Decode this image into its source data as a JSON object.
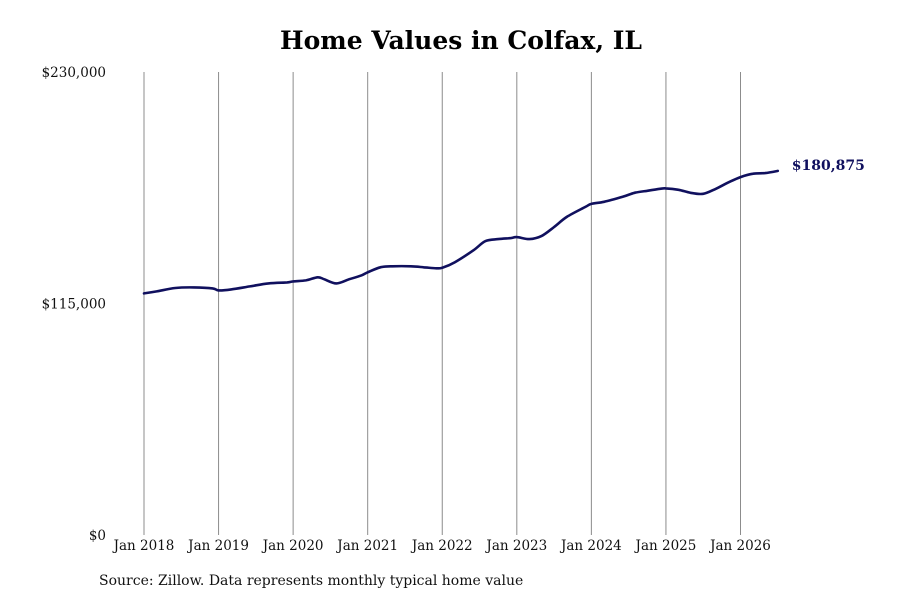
{
  "chart_data": {
    "type": "line",
    "title": "Home Values in Colfax, IL",
    "xlabel": "",
    "ylabel": "",
    "ylim": [
      0,
      230000
    ],
    "y_ticks": [
      0,
      115000,
      230000
    ],
    "y_tick_labels": [
      "$0",
      "$115,000",
      "$230,000"
    ],
    "x_ticks": [
      2018,
      2019,
      2020,
      2021,
      2022,
      2023,
      2024,
      2025,
      2026
    ],
    "x_tick_labels": [
      "Jan 2018",
      "Jan 2019",
      "Jan 2020",
      "Jan 2021",
      "Jan 2022",
      "Jan 2023",
      "Jan 2024",
      "Jan 2025",
      "Jan 2026"
    ],
    "xlim": [
      2018,
      2026.5
    ],
    "grid": "vertical",
    "line_color": "#10105e",
    "end_label": "$180,875",
    "series": [
      {
        "values": [
          [
            2018.0,
            120000
          ],
          [
            2018.17,
            121000
          ],
          [
            2018.42,
            122700
          ],
          [
            2018.67,
            123000
          ],
          [
            2018.92,
            122500
          ],
          [
            2019.0,
            121500
          ],
          [
            2019.17,
            122000
          ],
          [
            2019.42,
            123500
          ],
          [
            2019.67,
            125000
          ],
          [
            2019.92,
            125500
          ],
          [
            2020.0,
            126000
          ],
          [
            2020.17,
            126500
          ],
          [
            2020.33,
            128000
          ],
          [
            2020.42,
            127000
          ],
          [
            2020.58,
            125000
          ],
          [
            2020.75,
            127000
          ],
          [
            2020.92,
            129000
          ],
          [
            2021.0,
            130500
          ],
          [
            2021.17,
            133000
          ],
          [
            2021.33,
            133500
          ],
          [
            2021.58,
            133500
          ],
          [
            2021.75,
            133000
          ],
          [
            2021.92,
            132500
          ],
          [
            2022.0,
            132800
          ],
          [
            2022.17,
            135500
          ],
          [
            2022.42,
            141500
          ],
          [
            2022.58,
            146000
          ],
          [
            2022.75,
            147000
          ],
          [
            2022.92,
            147500
          ],
          [
            2023.0,
            148000
          ],
          [
            2023.17,
            147000
          ],
          [
            2023.33,
            148500
          ],
          [
            2023.5,
            153000
          ],
          [
            2023.67,
            158000
          ],
          [
            2023.92,
            163000
          ],
          [
            2024.0,
            164500
          ],
          [
            2024.17,
            165500
          ],
          [
            2024.42,
            168000
          ],
          [
            2024.58,
            170000
          ],
          [
            2024.75,
            171000
          ],
          [
            2024.92,
            172000
          ],
          [
            2025.0,
            172200
          ],
          [
            2025.17,
            171500
          ],
          [
            2025.33,
            170000
          ],
          [
            2025.5,
            169500
          ],
          [
            2025.67,
            172000
          ],
          [
            2025.83,
            175000
          ],
          [
            2026.0,
            177800
          ],
          [
            2026.17,
            179500
          ],
          [
            2026.33,
            179800
          ],
          [
            2026.5,
            180875
          ]
        ]
      }
    ]
  },
  "source_note": "Source: Zillow. Data represents monthly typical home value"
}
